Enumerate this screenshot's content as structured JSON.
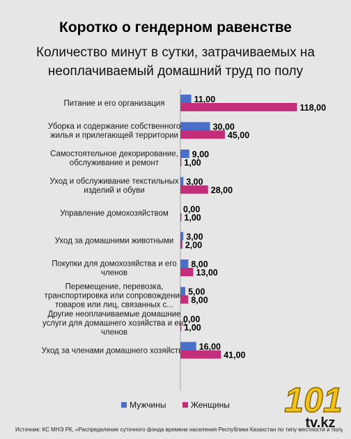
{
  "header": {
    "title": "Коротко о гендерном равенстве",
    "subtitle": "Количество минут в сутки, затрачиваемых на неоплачиваемый домашний труд по полу"
  },
  "colors": {
    "background": "#e6e6e6",
    "men": "#4a6fc9",
    "women": "#c42d7a",
    "axis": "#a6a6a6"
  },
  "chart_data": {
    "type": "bar",
    "orientation": "horizontal",
    "categories": [
      [
        "Питание и его организация"
      ],
      [
        "Уборка и содержание собственного",
        "жилья и прилегающей территории"
      ],
      [
        "Самостоятельное декорирование,",
        "обслуживание и ремонт"
      ],
      [
        "Уход и обслуживание текстильных",
        "изделий и обуви"
      ],
      [
        "Управление домохозяйством"
      ],
      [
        "Уход за домашними животными"
      ],
      [
        "Покупки для домохозяйства и его",
        "членов"
      ],
      [
        "Перемещение, перевозка,",
        "транспортировка или сопровождение",
        "товаров или лиц, связанных с..."
      ],
      [
        "Другие неоплачиваемые домашние",
        "услуги для домашнего хозяйства и его",
        "членов"
      ],
      [
        "Уход за членами домашнего хозяйства"
      ]
    ],
    "series": [
      {
        "name": "Мужчины",
        "color": "#4a6fc9",
        "values": [
          11,
          30,
          9,
          3,
          0,
          3,
          8,
          5,
          0,
          16
        ],
        "labels": [
          "11,00",
          "30,00",
          "9,00",
          "3,00",
          "0,00",
          "3,00",
          "8,00",
          "5,00",
          "0,00",
          "16,00"
        ]
      },
      {
        "name": "Женщины",
        "color": "#c42d7a",
        "values": [
          118,
          45,
          1,
          28,
          1,
          2,
          13,
          8,
          1,
          41
        ],
        "labels": [
          "118,00",
          "45,00",
          "1,00",
          "28,00",
          "1,00",
          "2,00",
          "13,00",
          "8,00",
          "1,00",
          "41,00"
        ]
      }
    ],
    "grid": false,
    "legend_position": "bottom"
  },
  "legend": {
    "men": "Мужчины",
    "women": "Женщины"
  },
  "source": "Источник: КС МНЭ РК, «Распределение суточного фонда времени населения Республики Казахстан по типу местности и полу»",
  "logo": {
    "text": "101",
    "sub": "tv.kz"
  }
}
